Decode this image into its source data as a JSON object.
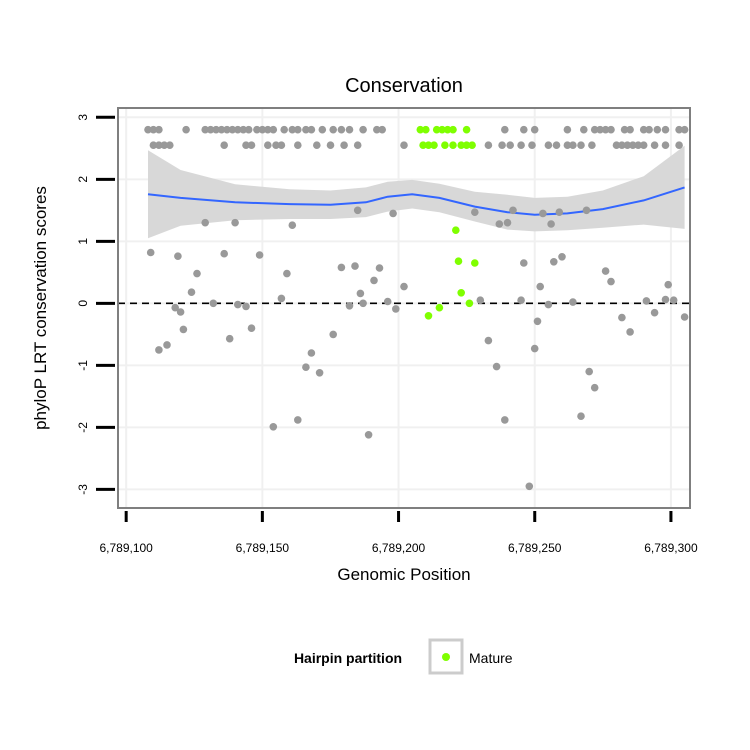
{
  "colors": {
    "panel_border": "#7f7f7f",
    "grid": "#f0f0f0",
    "point": "#999999",
    "mature": "#7fff00",
    "smooth_line": "#3366ff",
    "ribbon": "#d6d6d6",
    "zero_line": "#000000"
  },
  "chart_data": {
    "type": "scatter",
    "title": "Conservation",
    "xlabel": "Genomic Position",
    "ylabel": "phyloP LRT conservation scores",
    "xlim": [
      6789097,
      6789307
    ],
    "ylim": [
      -3.3,
      3.15
    ],
    "x_ticks": [
      {
        "value": 6789100,
        "label": "6,789,100"
      },
      {
        "value": 6789150,
        "label": "6,789,150"
      },
      {
        "value": 6789200,
        "label": "6,789,200"
      },
      {
        "value": 6789250,
        "label": "6,789,250"
      },
      {
        "value": 6789300,
        "label": "6,789,300"
      }
    ],
    "y_ticks": [
      {
        "value": -3,
        "label": "-3"
      },
      {
        "value": -2,
        "label": "-2"
      },
      {
        "value": -1,
        "label": "-1"
      },
      {
        "value": 0,
        "label": "0"
      },
      {
        "value": 1,
        "label": "1"
      },
      {
        "value": 2,
        "label": "2"
      },
      {
        "value": 3,
        "label": "3"
      }
    ],
    "grid": true,
    "hline": {
      "y": 0,
      "style": "dashed"
    },
    "legend": {
      "title": "Hairpin partition",
      "placement": "bottom",
      "entries": [
        {
          "label": "Mature",
          "color": "#7fff00"
        }
      ]
    },
    "series": [
      {
        "group": "other",
        "points": [
          [
            6789108,
            2.8
          ],
          [
            6789110,
            2.8
          ],
          [
            6789112,
            2.8
          ],
          [
            6789122,
            2.8
          ],
          [
            6789129,
            2.8
          ],
          [
            6789131,
            2.8
          ],
          [
            6789133,
            2.8
          ],
          [
            6789135,
            2.8
          ],
          [
            6789137,
            2.8
          ],
          [
            6789139,
            2.8
          ],
          [
            6789141,
            2.8
          ],
          [
            6789143,
            2.8
          ],
          [
            6789145,
            2.8
          ],
          [
            6789148,
            2.8
          ],
          [
            6789150,
            2.8
          ],
          [
            6789152,
            2.8
          ],
          [
            6789154,
            2.8
          ],
          [
            6789158,
            2.8
          ],
          [
            6789161,
            2.8
          ],
          [
            6789163,
            2.8
          ],
          [
            6789166,
            2.8
          ],
          [
            6789168,
            2.8
          ],
          [
            6789172,
            2.8
          ],
          [
            6789176,
            2.8
          ],
          [
            6789179,
            2.8
          ],
          [
            6789182,
            2.8
          ],
          [
            6789187,
            2.8
          ],
          [
            6789192,
            2.8
          ],
          [
            6789194,
            2.8
          ],
          [
            6789239,
            2.8
          ],
          [
            6789246,
            2.8
          ],
          [
            6789250,
            2.8
          ],
          [
            6789262,
            2.8
          ],
          [
            6789268,
            2.8
          ],
          [
            6789272,
            2.8
          ],
          [
            6789274,
            2.8
          ],
          [
            6789276,
            2.8
          ],
          [
            6789278,
            2.8
          ],
          [
            6789283,
            2.8
          ],
          [
            6789285,
            2.8
          ],
          [
            6789290,
            2.8
          ],
          [
            6789292,
            2.8
          ],
          [
            6789295,
            2.8
          ],
          [
            6789298,
            2.8
          ],
          [
            6789303,
            2.8
          ],
          [
            6789305,
            2.8
          ],
          [
            6789110,
            2.55
          ],
          [
            6789112,
            2.55
          ],
          [
            6789114,
            2.55
          ],
          [
            6789116,
            2.55
          ],
          [
            6789136,
            2.55
          ],
          [
            6789144,
            2.55
          ],
          [
            6789146,
            2.55
          ],
          [
            6789152,
            2.55
          ],
          [
            6789155,
            2.55
          ],
          [
            6789157,
            2.55
          ],
          [
            6789163,
            2.55
          ],
          [
            6789170,
            2.55
          ],
          [
            6789175,
            2.55
          ],
          [
            6789180,
            2.55
          ],
          [
            6789185,
            2.55
          ],
          [
            6789202,
            2.55
          ],
          [
            6789233,
            2.55
          ],
          [
            6789238,
            2.55
          ],
          [
            6789241,
            2.55
          ],
          [
            6789245,
            2.55
          ],
          [
            6789249,
            2.55
          ],
          [
            6789255,
            2.55
          ],
          [
            6789258,
            2.55
          ],
          [
            6789262,
            2.55
          ],
          [
            6789264,
            2.55
          ],
          [
            6789267,
            2.55
          ],
          [
            6789271,
            2.55
          ],
          [
            6789280,
            2.55
          ],
          [
            6789282,
            2.55
          ],
          [
            6789284,
            2.55
          ],
          [
            6789286,
            2.55
          ],
          [
            6789288,
            2.55
          ],
          [
            6789290,
            2.55
          ],
          [
            6789294,
            2.55
          ],
          [
            6789298,
            2.55
          ],
          [
            6789303,
            2.55
          ],
          [
            6789109,
            0.82
          ],
          [
            6789112,
            -0.75
          ],
          [
            6789115,
            -0.67
          ],
          [
            6789118,
            -0.07
          ],
          [
            6789119,
            0.76
          ],
          [
            6789120,
            -0.14
          ],
          [
            6789121,
            -0.42
          ],
          [
            6789124,
            0.18
          ],
          [
            6789126,
            0.48
          ],
          [
            6789129,
            1.3
          ],
          [
            6789132,
            0.0
          ],
          [
            6789136,
            0.8
          ],
          [
            6789138,
            -0.57
          ],
          [
            6789140,
            1.3
          ],
          [
            6789141,
            -0.02
          ],
          [
            6789144,
            -0.05
          ],
          [
            6789146,
            -0.4
          ],
          [
            6789149,
            0.78
          ],
          [
            6789154,
            -1.99
          ],
          [
            6789157,
            0.08
          ],
          [
            6789159,
            0.48
          ],
          [
            6789161,
            1.26
          ],
          [
            6789163,
            -1.88
          ],
          [
            6789166,
            -1.03
          ],
          [
            6789168,
            -0.8
          ],
          [
            6789171,
            -1.12
          ],
          [
            6789176,
            -0.5
          ],
          [
            6789179,
            0.58
          ],
          [
            6789182,
            -0.04
          ],
          [
            6789184,
            0.6
          ],
          [
            6789185,
            1.5
          ],
          [
            6789186,
            0.16
          ],
          [
            6789187,
            0.0
          ],
          [
            6789189,
            -2.12
          ],
          [
            6789191,
            0.37
          ],
          [
            6789193,
            0.57
          ],
          [
            6789196,
            0.03
          ],
          [
            6789198,
            1.45
          ],
          [
            6789199,
            -0.09
          ],
          [
            6789202,
            0.27
          ],
          [
            6789228,
            1.47
          ],
          [
            6789230,
            0.05
          ],
          [
            6789233,
            -0.6
          ],
          [
            6789236,
            -1.02
          ],
          [
            6789237,
            1.28
          ],
          [
            6789239,
            -1.88
          ],
          [
            6789240,
            1.3
          ],
          [
            6789242,
            1.5
          ],
          [
            6789245,
            0.05
          ],
          [
            6789246,
            0.65
          ],
          [
            6789248,
            -2.95
          ],
          [
            6789250,
            -0.73
          ],
          [
            6789251,
            -0.29
          ],
          [
            6789252,
            0.27
          ],
          [
            6789253,
            1.45
          ],
          [
            6789255,
            -0.02
          ],
          [
            6789256,
            1.28
          ],
          [
            6789257,
            0.67
          ],
          [
            6789259,
            1.47
          ],
          [
            6789260,
            0.75
          ],
          [
            6789264,
            0.02
          ],
          [
            6789267,
            -1.82
          ],
          [
            6789269,
            1.5
          ],
          [
            6789270,
            -1.1
          ],
          [
            6789272,
            -1.36
          ],
          [
            6789276,
            0.52
          ],
          [
            6789278,
            0.35
          ],
          [
            6789282,
            -0.23
          ],
          [
            6789285,
            -0.46
          ],
          [
            6789291,
            0.04
          ],
          [
            6789294,
            -0.15
          ],
          [
            6789298,
            0.06
          ],
          [
            6789299,
            0.3
          ],
          [
            6789301,
            0.05
          ],
          [
            6789305,
            -0.22
          ]
        ]
      },
      {
        "group": "Mature",
        "name": "Mature",
        "points": [
          [
            6789208,
            2.8
          ],
          [
            6789210,
            2.8
          ],
          [
            6789214,
            2.8
          ],
          [
            6789216,
            2.8
          ],
          [
            6789218,
            2.8
          ],
          [
            6789220,
            2.8
          ],
          [
            6789225,
            2.8
          ],
          [
            6789209,
            2.55
          ],
          [
            6789211,
            2.55
          ],
          [
            6789213,
            2.55
          ],
          [
            6789217,
            2.55
          ],
          [
            6789220,
            2.55
          ],
          [
            6789223,
            2.55
          ],
          [
            6789225,
            2.55
          ],
          [
            6789227,
            2.55
          ],
          [
            6789221,
            1.18
          ],
          [
            6789222,
            0.68
          ],
          [
            6789223,
            0.17
          ],
          [
            6789226,
            0.0
          ],
          [
            6789228,
            0.65
          ],
          [
            6789211,
            -0.2
          ],
          [
            6789215,
            -0.07
          ]
        ]
      }
    ],
    "smooth": {
      "points": [
        [
          6789108,
          1.76
        ],
        [
          6789120,
          1.7
        ],
        [
          6789140,
          1.63
        ],
        [
          6789160,
          1.6
        ],
        [
          6789175,
          1.59
        ],
        [
          6789188,
          1.63
        ],
        [
          6789196,
          1.72
        ],
        [
          6789205,
          1.76
        ],
        [
          6789215,
          1.7
        ],
        [
          6789228,
          1.56
        ],
        [
          6789240,
          1.47
        ],
        [
          6789250,
          1.43
        ],
        [
          6789262,
          1.45
        ],
        [
          6789275,
          1.52
        ],
        [
          6789290,
          1.66
        ],
        [
          6789305,
          1.87
        ]
      ],
      "lower": [
        [
          6789108,
          1.05
        ],
        [
          6789120,
          1.25
        ],
        [
          6789140,
          1.34
        ],
        [
          6789160,
          1.36
        ],
        [
          6789175,
          1.36
        ],
        [
          6789188,
          1.39
        ],
        [
          6789196,
          1.48
        ],
        [
          6789205,
          1.53
        ],
        [
          6789215,
          1.47
        ],
        [
          6789228,
          1.32
        ],
        [
          6789240,
          1.19
        ],
        [
          6789250,
          1.16
        ],
        [
          6789262,
          1.18
        ],
        [
          6789275,
          1.22
        ],
        [
          6789290,
          1.27
        ],
        [
          6789305,
          1.2
        ]
      ],
      "upper": [
        [
          6789108,
          2.47
        ],
        [
          6789120,
          2.15
        ],
        [
          6789140,
          1.92
        ],
        [
          6789160,
          1.84
        ],
        [
          6789175,
          1.82
        ],
        [
          6789188,
          1.87
        ],
        [
          6789196,
          1.96
        ],
        [
          6789205,
          1.99
        ],
        [
          6789215,
          1.93
        ],
        [
          6789228,
          1.8
        ],
        [
          6789240,
          1.75
        ],
        [
          6789250,
          1.7
        ],
        [
          6789262,
          1.72
        ],
        [
          6789275,
          1.82
        ],
        [
          6789290,
          2.05
        ],
        [
          6789305,
          2.54
        ]
      ]
    }
  }
}
